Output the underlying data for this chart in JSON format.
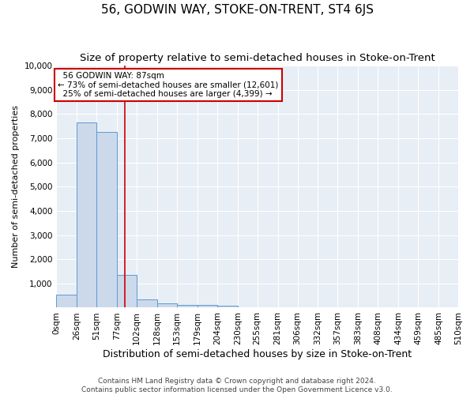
{
  "title": "56, GODWIN WAY, STOKE-ON-TRENT, ST4 6JS",
  "subtitle": "Size of property relative to semi-detached houses in Stoke-on-Trent",
  "xlabel": "Distribution of semi-detached houses by size in Stoke-on-Trent",
  "ylabel": "Number of semi-detached properties",
  "footer_line1": "Contains HM Land Registry data © Crown copyright and database right 2024.",
  "footer_line2": "Contains public sector information licensed under the Open Government Licence v3.0.",
  "bin_edges": [
    0,
    26,
    51,
    77,
    102,
    128,
    153,
    179,
    204,
    230,
    255,
    281,
    306,
    332,
    357,
    383,
    408,
    434,
    459,
    485,
    510
  ],
  "bar_heights": [
    550,
    7650,
    7250,
    1350,
    350,
    175,
    125,
    100,
    75,
    0,
    0,
    0,
    0,
    0,
    0,
    0,
    0,
    0,
    0,
    0
  ],
  "bar_color": "#ccd9ea",
  "bar_edgecolor": "#5b9bd5",
  "property_size": 87,
  "property_label": "56 GODWIN WAY: 87sqm",
  "pct_smaller": 73,
  "pct_larger": 25,
  "num_smaller": 12601,
  "num_larger": 4399,
  "vline_color": "#cc0000",
  "annotation_box_edgecolor": "#cc0000",
  "ylim": [
    0,
    10000
  ],
  "yticks": [
    0,
    1000,
    2000,
    3000,
    4000,
    5000,
    6000,
    7000,
    8000,
    9000,
    10000
  ],
  "bg_color": "#e8eef5",
  "grid_color": "#ffffff",
  "title_fontsize": 11,
  "subtitle_fontsize": 9.5,
  "xlabel_fontsize": 9,
  "ylabel_fontsize": 8,
  "tick_fontsize": 7.5,
  "annotation_fontsize": 7.5,
  "footer_fontsize": 6.5
}
